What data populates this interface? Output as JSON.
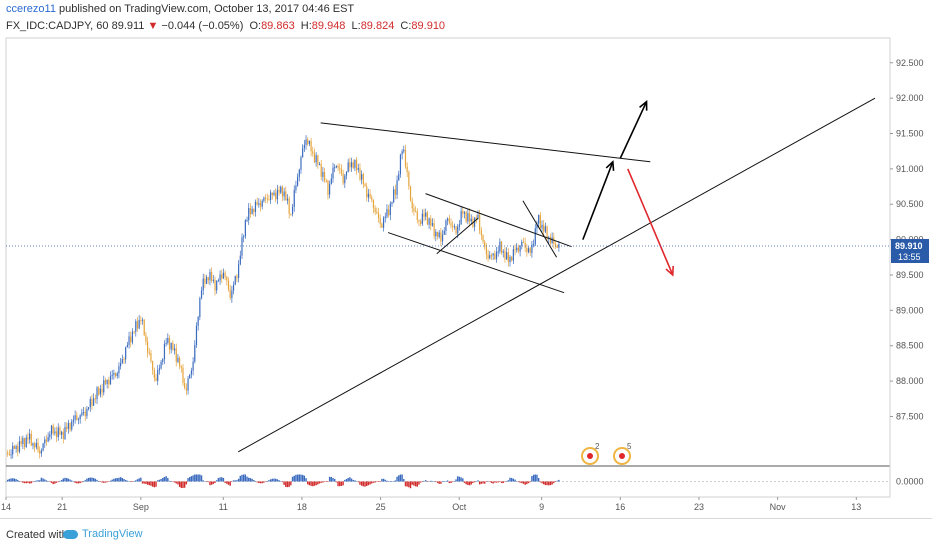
{
  "header": {
    "author": "ccerezo11",
    "published_text": "published on TradingView.com, October 13, 2017 04:46 EST",
    "symbol": "FX_IDC:CADJPY, 60",
    "last": "89.911",
    "change_arrow": "▼",
    "change": "−0.044 (−0.05%)",
    "open_label": "O:",
    "open": "89.863",
    "high_label": "H:",
    "high": "89.948",
    "low_label": "L:",
    "low": "89.824",
    "close_label": "C:",
    "close": "89.910"
  },
  "price_badge": {
    "price": "89.910",
    "countdown": "13:55"
  },
  "footer": {
    "created_with": "Created with",
    "brand": "TradingView"
  },
  "colors": {
    "up": "#3a6bbf",
    "down": "#e5a33a",
    "last_line": "#2a5ba8",
    "hist_pos": "#3a6bbf",
    "hist_neg": "#d12b2b",
    "bull_arrow": "#000000",
    "bear_arrow": "#e0262c"
  },
  "chart_data": {
    "type": "line",
    "title": "",
    "xlabel": "",
    "ylabel": "",
    "series": [
      {
        "values": [
          [
            0,
            86.95
          ],
          [
            6,
            87.2
          ],
          [
            9,
            87.0
          ],
          [
            12,
            87.3
          ],
          [
            15,
            87.25
          ],
          [
            18,
            87.45
          ],
          [
            21,
            87.55
          ],
          [
            24,
            87.8
          ],
          [
            27,
            88.0
          ],
          [
            30,
            88.15
          ],
          [
            33,
            88.6
          ],
          [
            36,
            88.9
          ],
          [
            38,
            88.4
          ],
          [
            40,
            88.0
          ],
          [
            43,
            88.6
          ],
          [
            46,
            88.3
          ],
          [
            48,
            87.85
          ],
          [
            50,
            88.3
          ],
          [
            52,
            89.3
          ],
          [
            54,
            89.5
          ],
          [
            56,
            89.35
          ],
          [
            58,
            89.55
          ],
          [
            60,
            89.2
          ],
          [
            62,
            89.6
          ],
          [
            64,
            90.3
          ],
          [
            66,
            90.45
          ],
          [
            70,
            90.6
          ],
          [
            74,
            90.7
          ],
          [
            76,
            90.35
          ],
          [
            78,
            90.95
          ],
          [
            80,
            91.45
          ],
          [
            82,
            91.2
          ],
          [
            84,
            91.0
          ],
          [
            86,
            90.7
          ],
          [
            88,
            91.1
          ],
          [
            90,
            90.85
          ],
          [
            92,
            91.1
          ],
          [
            94,
            91.0
          ],
          [
            96,
            90.7
          ],
          [
            98,
            90.5
          ],
          [
            100,
            90.2
          ],
          [
            102,
            90.4
          ],
          [
            104,
            90.7
          ],
          [
            106,
            91.35
          ],
          [
            108,
            90.55
          ],
          [
            110,
            90.25
          ],
          [
            112,
            90.35
          ],
          [
            114,
            90.15
          ],
          [
            116,
            90.0
          ],
          [
            118,
            90.3
          ],
          [
            120,
            90.1
          ],
          [
            122,
            90.4
          ],
          [
            124,
            90.25
          ],
          [
            126,
            90.3
          ],
          [
            128,
            89.8
          ],
          [
            130,
            89.75
          ],
          [
            132,
            89.9
          ],
          [
            134,
            89.7
          ],
          [
            136,
            89.85
          ],
          [
            138,
            89.95
          ],
          [
            140,
            89.8
          ],
          [
            142,
            90.3
          ],
          [
            144,
            90.1
          ],
          [
            146,
            89.95
          ],
          [
            148,
            89.91
          ]
        ]
      }
    ],
    "y_ticks": [
      "87.500",
      "88.000",
      "88.500",
      "89.000",
      "89.500",
      "90.000",
      "90.500",
      "91.000",
      "91.500",
      "92.000",
      "92.500"
    ],
    "ylim": [
      86.8,
      92.85
    ],
    "last_price": 89.91,
    "x_ticks": [
      "14",
      "21",
      "Sep",
      "11",
      "18",
      "25",
      "Oct",
      "9",
      "16",
      "23",
      "Nov",
      "13"
    ],
    "indicator": {
      "type": "histogram",
      "zero_label": "0.0000"
    },
    "annotations": {
      "trendlines": [
        {
          "from": [
            84,
            91.65
          ],
          "to": [
            172,
            91.1
          ]
        },
        {
          "from": [
            102,
            90.1
          ],
          "to": [
            149,
            89.25
          ]
        },
        {
          "from": [
            112,
            90.65
          ],
          "to": [
            151,
            89.9
          ]
        },
        {
          "from": [
            115,
            89.8
          ],
          "to": [
            126,
            90.3
          ]
        },
        {
          "from": [
            138,
            90.55
          ],
          "to": [
            147,
            89.75
          ]
        },
        {
          "from": [
            62,
            87.0
          ],
          "to": [
            232,
            92.0
          ]
        }
      ],
      "bull_arrows": [
        {
          "from": [
            154,
            90.0
          ],
          "to": [
            162,
            91.1
          ]
        },
        {
          "from": [
            164,
            91.15
          ],
          "to": [
            171,
            91.95
          ]
        }
      ],
      "bear_arrow": {
        "from": [
          166,
          91.0
        ],
        "to": [
          178,
          89.5
        ]
      }
    },
    "grid": false,
    "legend": "none"
  }
}
